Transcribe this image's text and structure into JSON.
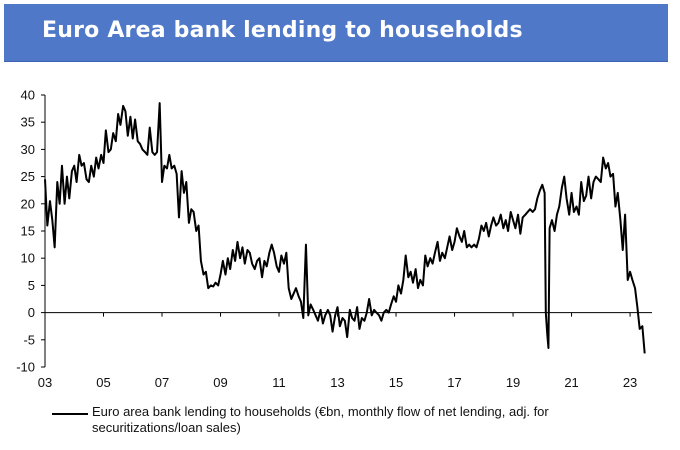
{
  "chart_data": {
    "type": "line",
    "title": "Euro Area bank lending to households",
    "xlabel": "",
    "ylabel": "",
    "ylim": [
      -10,
      40
    ],
    "yticks": [
      40,
      35,
      30,
      25,
      20,
      15,
      10,
      5,
      0,
      -5,
      -10
    ],
    "xlim": [
      2003,
      2023.75
    ],
    "xticks": [
      {
        "label": "03",
        "value": 2003
      },
      {
        "label": "05",
        "value": 2005
      },
      {
        "label": "07",
        "value": 2007
      },
      {
        "label": "09",
        "value": 2009
      },
      {
        "label": "11",
        "value": 2011
      },
      {
        "label": "13",
        "value": 2013
      },
      {
        "label": "15",
        "value": 2015
      },
      {
        "label": "17",
        "value": 2017
      },
      {
        "label": "19",
        "value": 2019
      },
      {
        "label": "21",
        "value": 2021
      },
      {
        "label": "23",
        "value": 2023
      }
    ],
    "grid": false,
    "legend_position": "bottom",
    "series": [
      {
        "name": "Euro area bank lending to households (€bn, monthly flow of net lending, adj. for securitizations/loan sales)",
        "color": "#000000",
        "points": [
          [
            2003.0,
            24.5
          ],
          [
            2003.08,
            16.0
          ],
          [
            2003.17,
            20.5
          ],
          [
            2003.25,
            17.0
          ],
          [
            2003.33,
            12.0
          ],
          [
            2003.42,
            24.0
          ],
          [
            2003.5,
            20.0
          ],
          [
            2003.58,
            27.0
          ],
          [
            2003.67,
            20.0
          ],
          [
            2003.75,
            25.0
          ],
          [
            2003.83,
            21.0
          ],
          [
            2003.92,
            26.0
          ],
          [
            2004.0,
            27.0
          ],
          [
            2004.08,
            24.0
          ],
          [
            2004.17,
            29.0
          ],
          [
            2004.25,
            27.0
          ],
          [
            2004.33,
            27.5
          ],
          [
            2004.42,
            24.5
          ],
          [
            2004.5,
            24.0
          ],
          [
            2004.58,
            27.0
          ],
          [
            2004.67,
            25.0
          ],
          [
            2004.75,
            28.5
          ],
          [
            2004.83,
            26.5
          ],
          [
            2004.92,
            29.0
          ],
          [
            2005.0,
            27.5
          ],
          [
            2005.08,
            33.5
          ],
          [
            2005.17,
            29.5
          ],
          [
            2005.25,
            30.0
          ],
          [
            2005.33,
            33.0
          ],
          [
            2005.42,
            31.5
          ],
          [
            2005.5,
            36.5
          ],
          [
            2005.58,
            34.5
          ],
          [
            2005.67,
            38.0
          ],
          [
            2005.75,
            37.0
          ],
          [
            2005.83,
            32.5
          ],
          [
            2005.92,
            36.0
          ],
          [
            2006.0,
            32.0
          ],
          [
            2006.08,
            35.5
          ],
          [
            2006.17,
            31.5
          ],
          [
            2006.25,
            31.0
          ],
          [
            2006.33,
            30.0
          ],
          [
            2006.42,
            29.5
          ],
          [
            2006.5,
            29.0
          ],
          [
            2006.58,
            34.0
          ],
          [
            2006.67,
            29.5
          ],
          [
            2006.75,
            29.0
          ],
          [
            2006.83,
            29.5
          ],
          [
            2006.92,
            38.5
          ],
          [
            2007.0,
            24.0
          ],
          [
            2007.08,
            27.0
          ],
          [
            2007.17,
            26.5
          ],
          [
            2007.25,
            29.0
          ],
          [
            2007.33,
            26.5
          ],
          [
            2007.42,
            27.0
          ],
          [
            2007.5,
            25.5
          ],
          [
            2007.58,
            17.5
          ],
          [
            2007.67,
            26.0
          ],
          [
            2007.75,
            22.0
          ],
          [
            2007.83,
            24.0
          ],
          [
            2007.92,
            16.5
          ],
          [
            2008.0,
            19.0
          ],
          [
            2008.08,
            18.5
          ],
          [
            2008.17,
            15.0
          ],
          [
            2008.25,
            16.0
          ],
          [
            2008.33,
            9.5
          ],
          [
            2008.42,
            7.0
          ],
          [
            2008.5,
            7.5
          ],
          [
            2008.58,
            4.5
          ],
          [
            2008.67,
            5.0
          ],
          [
            2008.75,
            4.8
          ],
          [
            2008.83,
            5.5
          ],
          [
            2008.92,
            5.0
          ],
          [
            2009.0,
            7.0
          ],
          [
            2009.08,
            9.5
          ],
          [
            2009.17,
            7.0
          ],
          [
            2009.25,
            10.0
          ],
          [
            2009.33,
            8.0
          ],
          [
            2009.42,
            11.5
          ],
          [
            2009.5,
            9.5
          ],
          [
            2009.58,
            13.0
          ],
          [
            2009.67,
            10.0
          ],
          [
            2009.75,
            12.0
          ],
          [
            2009.83,
            9.0
          ],
          [
            2009.92,
            11.5
          ],
          [
            2010.0,
            11.0
          ],
          [
            2010.08,
            9.0
          ],
          [
            2010.17,
            8.0
          ],
          [
            2010.25,
            9.5
          ],
          [
            2010.33,
            10.0
          ],
          [
            2010.42,
            6.5
          ],
          [
            2010.5,
            9.5
          ],
          [
            2010.58,
            8.5
          ],
          [
            2010.67,
            11.0
          ],
          [
            2010.75,
            12.5
          ],
          [
            2010.83,
            11.0
          ],
          [
            2010.92,
            8.5
          ],
          [
            2011.0,
            7.5
          ],
          [
            2011.08,
            10.5
          ],
          [
            2011.17,
            9.0
          ],
          [
            2011.25,
            11.0
          ],
          [
            2011.33,
            4.5
          ],
          [
            2011.42,
            2.5
          ],
          [
            2011.5,
            3.5
          ],
          [
            2011.58,
            4.5
          ],
          [
            2011.67,
            3.0
          ],
          [
            2011.75,
            2.0
          ],
          [
            2011.83,
            -1.0
          ],
          [
            2011.92,
            12.5
          ],
          [
            2012.0,
            -0.5
          ],
          [
            2012.08,
            1.5
          ],
          [
            2012.17,
            0.5
          ],
          [
            2012.25,
            -0.5
          ],
          [
            2012.33,
            -1.5
          ],
          [
            2012.42,
            0.5
          ],
          [
            2012.5,
            -2.0
          ],
          [
            2012.58,
            -0.5
          ],
          [
            2012.67,
            0.5
          ],
          [
            2012.75,
            -0.5
          ],
          [
            2012.83,
            -3.5
          ],
          [
            2012.92,
            -0.5
          ],
          [
            2013.0,
            1.0
          ],
          [
            2013.08,
            -2.5
          ],
          [
            2013.17,
            -1.0
          ],
          [
            2013.25,
            -1.5
          ],
          [
            2013.33,
            -4.5
          ],
          [
            2013.42,
            0.5
          ],
          [
            2013.5,
            -1.0
          ],
          [
            2013.58,
            -1.5
          ],
          [
            2013.67,
            1.0
          ],
          [
            2013.75,
            -3.0
          ],
          [
            2013.83,
            -1.0
          ],
          [
            2013.92,
            -1.5
          ],
          [
            2014.0,
            0.0
          ],
          [
            2014.08,
            2.5
          ],
          [
            2014.17,
            -0.5
          ],
          [
            2014.25,
            0.5
          ],
          [
            2014.33,
            0.0
          ],
          [
            2014.42,
            -0.5
          ],
          [
            2014.5,
            -1.5
          ],
          [
            2014.58,
            0.0
          ],
          [
            2014.67,
            0.5
          ],
          [
            2014.75,
            0.0
          ],
          [
            2014.83,
            1.5
          ],
          [
            2014.92,
            3.0
          ],
          [
            2015.0,
            2.0
          ],
          [
            2015.08,
            5.0
          ],
          [
            2015.17,
            3.5
          ],
          [
            2015.25,
            6.0
          ],
          [
            2015.33,
            10.5
          ],
          [
            2015.42,
            6.5
          ],
          [
            2015.5,
            7.5
          ],
          [
            2015.58,
            5.5
          ],
          [
            2015.67,
            8.0
          ],
          [
            2015.75,
            4.5
          ],
          [
            2015.83,
            6.0
          ],
          [
            2015.92,
            5.0
          ],
          [
            2016.0,
            10.5
          ],
          [
            2016.08,
            8.5
          ],
          [
            2016.17,
            10.0
          ],
          [
            2016.25,
            9.0
          ],
          [
            2016.33,
            11.0
          ],
          [
            2016.42,
            13.0
          ],
          [
            2016.5,
            9.5
          ],
          [
            2016.58,
            11.0
          ],
          [
            2016.67,
            10.0
          ],
          [
            2016.75,
            12.0
          ],
          [
            2016.83,
            14.0
          ],
          [
            2016.92,
            11.5
          ],
          [
            2017.0,
            13.0
          ],
          [
            2017.08,
            15.5
          ],
          [
            2017.17,
            14.0
          ],
          [
            2017.25,
            13.0
          ],
          [
            2017.33,
            15.0
          ],
          [
            2017.42,
            12.0
          ],
          [
            2017.5,
            12.5
          ],
          [
            2017.58,
            12.0
          ],
          [
            2017.67,
            12.5
          ],
          [
            2017.75,
            12.0
          ],
          [
            2017.83,
            13.5
          ],
          [
            2017.92,
            16.0
          ],
          [
            2018.0,
            15.0
          ],
          [
            2018.08,
            16.5
          ],
          [
            2018.17,
            14.0
          ],
          [
            2018.25,
            16.0
          ],
          [
            2018.33,
            17.5
          ],
          [
            2018.42,
            16.0
          ],
          [
            2018.5,
            16.5
          ],
          [
            2018.58,
            18.0
          ],
          [
            2018.67,
            15.5
          ],
          [
            2018.75,
            17.0
          ],
          [
            2018.83,
            15.0
          ],
          [
            2018.92,
            18.5
          ],
          [
            2019.0,
            17.0
          ],
          [
            2019.08,
            15.5
          ],
          [
            2019.17,
            18.0
          ],
          [
            2019.25,
            14.5
          ],
          [
            2019.33,
            17.5
          ],
          [
            2019.42,
            18.0
          ],
          [
            2019.5,
            18.5
          ],
          [
            2019.58,
            19.0
          ],
          [
            2019.67,
            18.5
          ],
          [
            2019.75,
            19.0
          ],
          [
            2019.83,
            21.0
          ],
          [
            2019.92,
            22.5
          ],
          [
            2020.0,
            23.5
          ],
          [
            2020.08,
            22.0
          ],
          [
            2020.12,
            0.0
          ],
          [
            2020.17,
            -4.0
          ],
          [
            2020.21,
            -6.5
          ],
          [
            2020.25,
            15.5
          ],
          [
            2020.33,
            17.0
          ],
          [
            2020.42,
            15.0
          ],
          [
            2020.5,
            18.0
          ],
          [
            2020.58,
            19.5
          ],
          [
            2020.67,
            23.0
          ],
          [
            2020.75,
            25.0
          ],
          [
            2020.83,
            21.0
          ],
          [
            2020.92,
            18.0
          ],
          [
            2021.0,
            22.0
          ],
          [
            2021.08,
            18.5
          ],
          [
            2021.17,
            19.5
          ],
          [
            2021.25,
            18.0
          ],
          [
            2021.33,
            24.0
          ],
          [
            2021.42,
            20.5
          ],
          [
            2021.5,
            21.5
          ],
          [
            2021.58,
            25.0
          ],
          [
            2021.67,
            21.0
          ],
          [
            2021.75,
            24.0
          ],
          [
            2021.83,
            25.0
          ],
          [
            2021.92,
            24.5
          ],
          [
            2022.0,
            24.0
          ],
          [
            2022.08,
            28.5
          ],
          [
            2022.17,
            26.5
          ],
          [
            2022.25,
            27.5
          ],
          [
            2022.33,
            25.0
          ],
          [
            2022.42,
            25.5
          ],
          [
            2022.5,
            19.5
          ],
          [
            2022.58,
            22.0
          ],
          [
            2022.67,
            17.0
          ],
          [
            2022.75,
            11.5
          ],
          [
            2022.83,
            18.0
          ],
          [
            2022.92,
            6.0
          ],
          [
            2023.0,
            7.5
          ],
          [
            2023.08,
            6.0
          ],
          [
            2023.17,
            4.5
          ],
          [
            2023.25,
            1.0
          ],
          [
            2023.33,
            -3.0
          ],
          [
            2023.42,
            -2.5
          ],
          [
            2023.5,
            -7.5
          ]
        ]
      }
    ]
  }
}
